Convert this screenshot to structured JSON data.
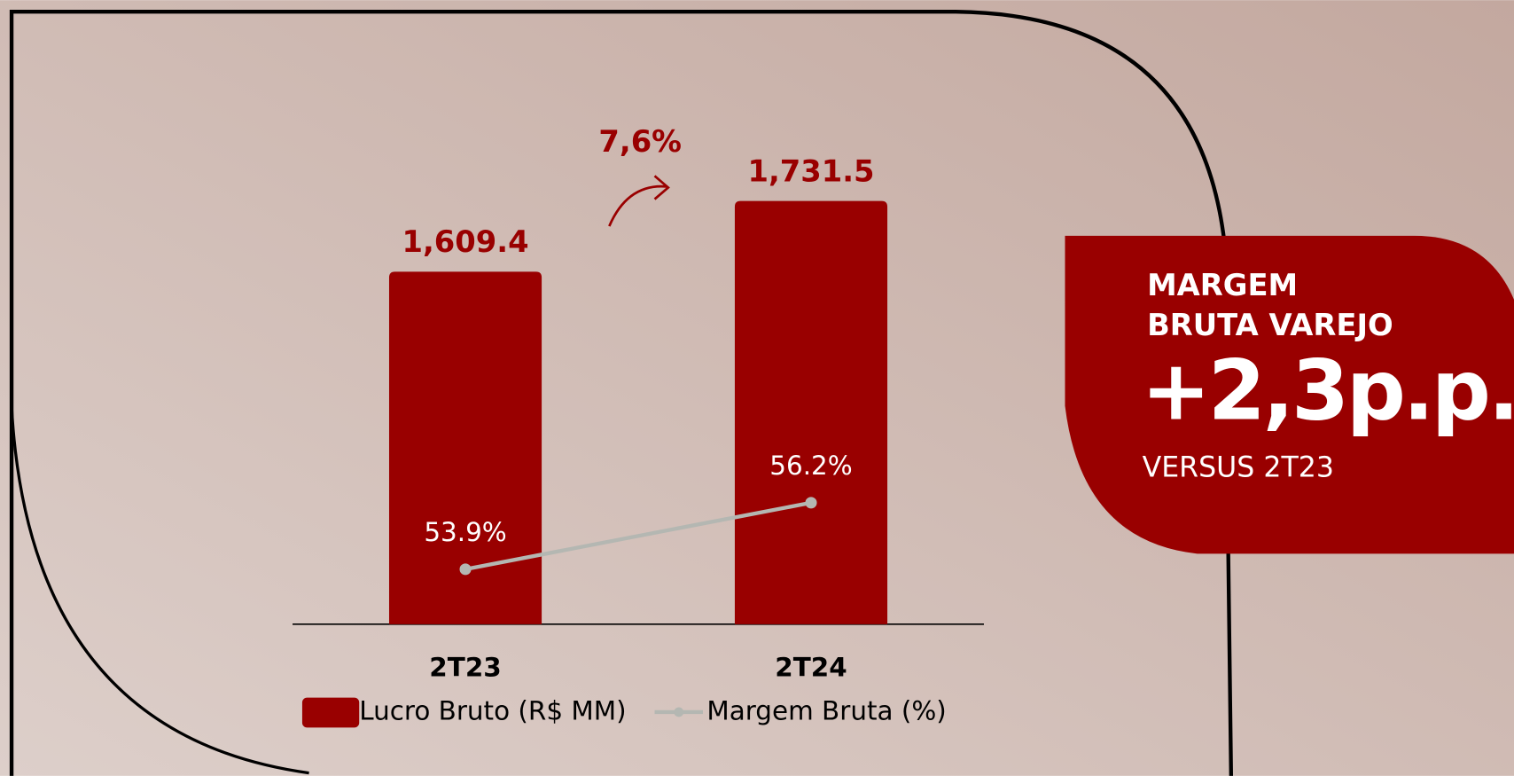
{
  "chart_data": {
    "type": "bar_line",
    "categories": [
      "2T23",
      "2T24"
    ],
    "series": [
      {
        "name": "Lucro Bruto (R$ MM)",
        "type": "bar",
        "color": "#990000",
        "values": [
          1609.4,
          1731.5
        ],
        "value_labels": [
          "1,609.4",
          "1,731.5"
        ]
      },
      {
        "name": "Margem Bruta (%)",
        "type": "line",
        "axis": "y2",
        "color": "#b4b7b2",
        "values": [
          53.9,
          56.2
        ],
        "value_labels": [
          "53.9%",
          "56.2%"
        ]
      }
    ],
    "ylim": [
      1000,
      1850
    ],
    "y2lim": [
      52,
      69
    ],
    "annotation": "7,6%",
    "panel": {
      "heading": [
        "MARGEM",
        "BRUTA VAREJO"
      ],
      "value": "+2,3p.p.",
      "caption": "VERSUS 2T23"
    }
  }
}
